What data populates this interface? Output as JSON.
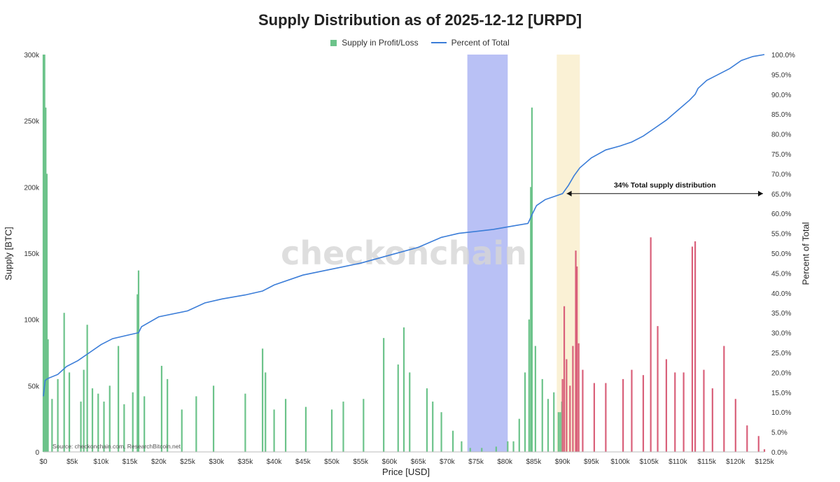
{
  "chart_data": {
    "type": "bar",
    "title": "Supply Distribution as of 2025-12-12 [URPD]",
    "xlabel": "Price [USD]",
    "ylabel": "Supply [BTC]",
    "y2label": "Percent of Total",
    "xlim": [
      0,
      125000
    ],
    "ylim": [
      0,
      300000
    ],
    "y2lim": [
      0,
      100
    ],
    "current_price": 90000,
    "x_ticks": [
      "$0",
      "$5k",
      "$10k",
      "$15k",
      "$20k",
      "$25k",
      "$30k",
      "$35k",
      "$40k",
      "$45k",
      "$50k",
      "$55k",
      "$60k",
      "$65k",
      "$70k",
      "$75k",
      "$80k",
      "$85k",
      "$90k",
      "$95k",
      "$100k",
      "$105k",
      "$110k",
      "$115k",
      "$120k",
      "$125k"
    ],
    "y_ticks": [
      "΂0",
      "΂50k",
      "΂100k",
      "΂150k",
      "΂200k",
      "΂250k",
      "΂300k"
    ],
    "y2_ticks": [
      "0.0%",
      "5.0%",
      "10.0%",
      "15.0%",
      "20.0%",
      "25.0%",
      "30.0%",
      "35.0%",
      "40.0%",
      "45.0%",
      "50.0%",
      "55.0%",
      "60.0%",
      "65.0%",
      "70.0%",
      "75.0%",
      "80.0%",
      "85.0%",
      "90.0%",
      "95.0%",
      "100.0%"
    ],
    "series": [
      {
        "name": "Supply in Profit/Loss",
        "type": "bar",
        "color_profit": "#6cc38a",
        "color_loss": "#d9607a",
        "points": [
          {
            "x": 0,
            "y": 300000
          },
          {
            "x": 200,
            "y": 300000
          },
          {
            "x": 400,
            "y": 260000
          },
          {
            "x": 600,
            "y": 210000
          },
          {
            "x": 800,
            "y": 85000
          },
          {
            "x": 1500,
            "y": 40000
          },
          {
            "x": 2500,
            "y": 55000
          },
          {
            "x": 3600,
            "y": 105000
          },
          {
            "x": 4500,
            "y": 60000
          },
          {
            "x": 6500,
            "y": 38000
          },
          {
            "x": 7000,
            "y": 62000
          },
          {
            "x": 7600,
            "y": 96000
          },
          {
            "x": 8500,
            "y": 48000
          },
          {
            "x": 9500,
            "y": 44000
          },
          {
            "x": 10500,
            "y": 38000
          },
          {
            "x": 11500,
            "y": 50000
          },
          {
            "x": 13000,
            "y": 80000
          },
          {
            "x": 14000,
            "y": 36000
          },
          {
            "x": 15500,
            "y": 45000
          },
          {
            "x": 16300,
            "y": 119000
          },
          {
            "x": 16500,
            "y": 137000
          },
          {
            "x": 17500,
            "y": 42000
          },
          {
            "x": 20500,
            "y": 65000
          },
          {
            "x": 21500,
            "y": 55000
          },
          {
            "x": 24000,
            "y": 32000
          },
          {
            "x": 26500,
            "y": 42000
          },
          {
            "x": 29500,
            "y": 50000
          },
          {
            "x": 35000,
            "y": 44000
          },
          {
            "x": 38000,
            "y": 78000
          },
          {
            "x": 38500,
            "y": 60000
          },
          {
            "x": 40000,
            "y": 32000
          },
          {
            "x": 42000,
            "y": 40000
          },
          {
            "x": 45500,
            "y": 34000
          },
          {
            "x": 50000,
            "y": 32000
          },
          {
            "x": 52000,
            "y": 38000
          },
          {
            "x": 55500,
            "y": 40000
          },
          {
            "x": 59000,
            "y": 86000
          },
          {
            "x": 61500,
            "y": 66000
          },
          {
            "x": 62500,
            "y": 94000
          },
          {
            "x": 63500,
            "y": 60000
          },
          {
            "x": 66500,
            "y": 48000
          },
          {
            "x": 67500,
            "y": 38000
          },
          {
            "x": 69000,
            "y": 30000
          },
          {
            "x": 71000,
            "y": 16000
          },
          {
            "x": 72500,
            "y": 8000
          },
          {
            "x": 74000,
            "y": 3000
          },
          {
            "x": 76000,
            "y": 3000
          },
          {
            "x": 78500,
            "y": 4000
          },
          {
            "x": 80500,
            "y": 8000
          },
          {
            "x": 81500,
            "y": 8000
          },
          {
            "x": 82500,
            "y": 25000
          },
          {
            "x": 83500,
            "y": 60000
          },
          {
            "x": 84200,
            "y": 100000
          },
          {
            "x": 84500,
            "y": 200000
          },
          {
            "x": 84700,
            "y": 260000
          },
          {
            "x": 85300,
            "y": 80000
          },
          {
            "x": 86500,
            "y": 55000
          },
          {
            "x": 87500,
            "y": 40000
          },
          {
            "x": 88500,
            "y": 45000
          },
          {
            "x": 89300,
            "y": 30000
          },
          {
            "x": 89600,
            "y": 30000
          },
          {
            "x": 89900,
            "y": 38000
          },
          {
            "x": 90000,
            "y": 55000
          },
          {
            "x": 90300,
            "y": 110000
          },
          {
            "x": 90700,
            "y": 70000
          },
          {
            "x": 91300,
            "y": 50000
          },
          {
            "x": 91800,
            "y": 80000
          },
          {
            "x": 92300,
            "y": 152000
          },
          {
            "x": 92500,
            "y": 140000
          },
          {
            "x": 92800,
            "y": 82000
          },
          {
            "x": 93500,
            "y": 62000
          },
          {
            "x": 95500,
            "y": 52000
          },
          {
            "x": 97500,
            "y": 52000
          },
          {
            "x": 100500,
            "y": 55000
          },
          {
            "x": 102000,
            "y": 62000
          },
          {
            "x": 104000,
            "y": 58000
          },
          {
            "x": 105300,
            "y": 162000
          },
          {
            "x": 106500,
            "y": 95000
          },
          {
            "x": 108000,
            "y": 70000
          },
          {
            "x": 109500,
            "y": 60000
          },
          {
            "x": 111000,
            "y": 60000
          },
          {
            "x": 112500,
            "y": 155000
          },
          {
            "x": 113000,
            "y": 159000
          },
          {
            "x": 114500,
            "y": 62000
          },
          {
            "x": 116000,
            "y": 48000
          },
          {
            "x": 118000,
            "y": 80000
          },
          {
            "x": 120000,
            "y": 40000
          },
          {
            "x": 122000,
            "y": 20000
          },
          {
            "x": 124000,
            "y": 12000
          },
          {
            "x": 125000,
            "y": 2000
          }
        ]
      },
      {
        "name": "Percent of Total",
        "type": "line",
        "color": "#3b7dd8",
        "points": [
          [
            0,
            14
          ],
          [
            300,
            18
          ],
          [
            800,
            18.5
          ],
          [
            2500,
            19.5
          ],
          [
            4000,
            21.5
          ],
          [
            6000,
            23
          ],
          [
            8000,
            25
          ],
          [
            10000,
            27
          ],
          [
            12000,
            28.5
          ],
          [
            15000,
            29.5
          ],
          [
            16500,
            30
          ],
          [
            17000,
            31.5
          ],
          [
            20000,
            34
          ],
          [
            25000,
            35.5
          ],
          [
            28000,
            37.5
          ],
          [
            31000,
            38.5
          ],
          [
            35000,
            39.5
          ],
          [
            38000,
            40.5
          ],
          [
            40000,
            42
          ],
          [
            45000,
            44.5
          ],
          [
            50000,
            46
          ],
          [
            55000,
            47.5
          ],
          [
            60000,
            49.5
          ],
          [
            65000,
            51.5
          ],
          [
            69000,
            54
          ],
          [
            72000,
            55
          ],
          [
            75000,
            55.5
          ],
          [
            78000,
            56
          ],
          [
            82000,
            57
          ],
          [
            84000,
            57.5
          ],
          [
            84800,
            60
          ],
          [
            85500,
            62
          ],
          [
            87000,
            63.5
          ],
          [
            89000,
            64.5
          ],
          [
            90000,
            65
          ],
          [
            91000,
            67
          ],
          [
            92000,
            69.5
          ],
          [
            93000,
            71.5
          ],
          [
            95000,
            74
          ],
          [
            97500,
            76
          ],
          [
            100000,
            77
          ],
          [
            102000,
            78
          ],
          [
            104000,
            79.5
          ],
          [
            106000,
            81.5
          ],
          [
            108000,
            83.5
          ],
          [
            110000,
            86
          ],
          [
            112000,
            88.5
          ],
          [
            113000,
            90
          ],
          [
            113500,
            91.5
          ],
          [
            115000,
            93.5
          ],
          [
            117000,
            95
          ],
          [
            119000,
            96.5
          ],
          [
            121000,
            98.5
          ],
          [
            123000,
            99.5
          ],
          [
            125000,
            100
          ]
        ]
      }
    ],
    "highlights": [
      {
        "from": 73500,
        "to": 80500,
        "color": "#8a98ee"
      },
      {
        "from": 89000,
        "to": 93000,
        "color": "#f7e8b9"
      }
    ],
    "annotations": [
      {
        "text": "34% Total supply distribution",
        "from": 90000,
        "to": 125000,
        "y2": 65
      }
    ],
    "watermark": "checkonchain",
    "source": "Source: checkonchain.com, ResearchBitcoin.net"
  }
}
